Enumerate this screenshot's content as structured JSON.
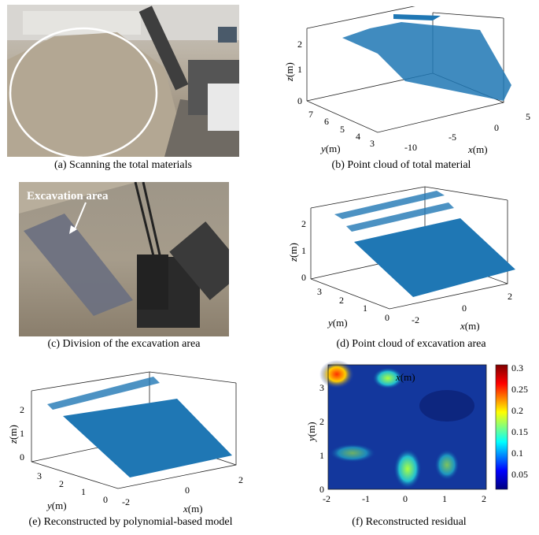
{
  "panels": {
    "a": {
      "caption": "(a) Scanning the total materials"
    },
    "b": {
      "caption": "(b) Point cloud of total material",
      "z_ticks": [
        "0",
        "1",
        "2"
      ],
      "y_ticks": [
        "7",
        "6",
        "5",
        "4",
        "3"
      ],
      "x_ticks": [
        "-10",
        "-5",
        "0",
        "5"
      ],
      "z_var": "z",
      "y_var": "y",
      "x_var": "x",
      "unit": "(m)"
    },
    "c": {
      "caption": "(c) Division of the excavation area",
      "annotation": "Excavation area"
    },
    "d": {
      "caption": "(d) Point cloud of excavation area",
      "z_ticks": [
        "0",
        "1",
        "2"
      ],
      "y_ticks": [
        "3",
        "2",
        "1",
        "0"
      ],
      "x_ticks": [
        "-2",
        "0",
        "2"
      ],
      "z_var": "z",
      "y_var": "y",
      "x_var": "x",
      "unit": "(m)"
    },
    "e": {
      "caption": "(e) Reconstructed by polynomial-based model",
      "z_ticks": [
        "0",
        "1",
        "2"
      ],
      "y_ticks": [
        "3",
        "2",
        "1",
        "0"
      ],
      "x_ticks": [
        "-2",
        "0",
        "2"
      ],
      "z_var": "z",
      "y_var": "y",
      "x_var": "x",
      "unit": "(m)"
    },
    "f": {
      "caption": "(f) Reconstructed residual",
      "y_ticks": [
        "0",
        "1",
        "2",
        "3"
      ],
      "x_ticks": [
        "-2",
        "-1",
        "0",
        "1",
        "2"
      ],
      "colorbar_ticks": [
        "0.3",
        "0.25",
        "0.2",
        "0.15",
        "0.1",
        "0.05"
      ],
      "y_var": "y",
      "x_var": "x",
      "unit": "(m)"
    }
  },
  "colors": {
    "points": "#1f77b4",
    "heat_low": "#00007f",
    "heat_high": "#7f0000"
  }
}
